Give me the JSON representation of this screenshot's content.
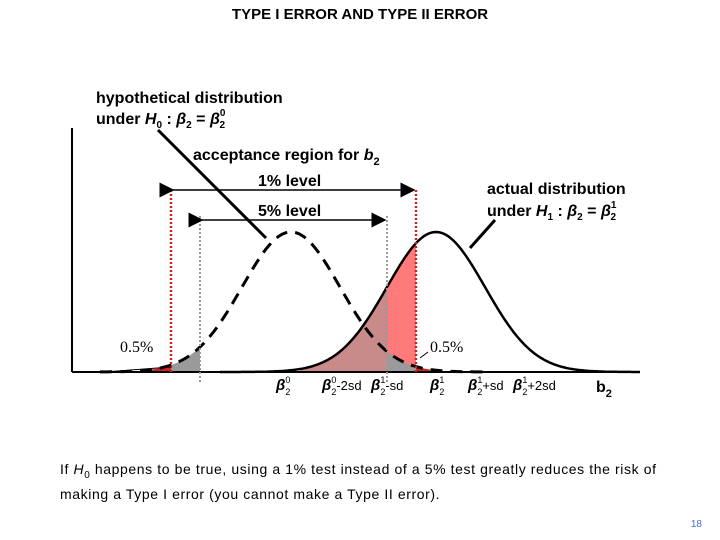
{
  "title": "TYPE I ERROR AND TYPE II ERROR",
  "h0_label": {
    "line1": "hypothetical distribution",
    "line2_prefix": "under ",
    "hypothesis_symbol": "H",
    "hypothesis_sub": "0",
    "colon": " : ",
    "beta": "β",
    "beta_sub": "2",
    "equals": " = ",
    "beta_sup": "0"
  },
  "h1_label": {
    "line1": "actual distribution",
    "line2_prefix": "under ",
    "hypothesis_symbol": "H",
    "hypothesis_sub": "1",
    "colon": " : ",
    "beta": "β",
    "beta_sub": "2",
    "equals": " = ",
    "beta_sup": "1"
  },
  "acceptance_region": {
    "text": "acceptance region for ",
    "var": "b",
    "var_sub": "2"
  },
  "levels": {
    "one_percent": "1% level",
    "five_percent": "5% level"
  },
  "tail_labels": {
    "left": "0.5%",
    "right": "0.5%"
  },
  "axis_ticks": [
    {
      "greek": "β",
      "sub": "2",
      "sup": "0",
      "suffix": ""
    },
    {
      "greek": "β",
      "sub": "2",
      "sup": "0",
      "suffix": "-2sd"
    },
    {
      "greek": "β",
      "sub": "2",
      "sup": "1",
      "suffix": "-sd"
    },
    {
      "greek": "β",
      "sub": "2",
      "sup": "1",
      "suffix": ""
    },
    {
      "greek": "β",
      "sub": "2",
      "sup": "1",
      "suffix": "+sd"
    },
    {
      "greek": "β",
      "sub": "2",
      "sup": "1",
      "suffix": "+2sd"
    }
  ],
  "axis_var": {
    "var": "b",
    "sub": "2"
  },
  "footnote": {
    "prefix": "If ",
    "h": "H",
    "h_sub": "0",
    "rest": " happens to be true, using a 1% test instead of a 5% test greatly reduces the risk of making a Type I error (you cannot make a Type II error)."
  },
  "page_number": "18",
  "colors": {
    "red_region": "#ff7b7b",
    "overlap_region": "#c98a8a",
    "grey_tail": "#9a9a9a",
    "red_boundary": "#cc2222",
    "grey_boundary": "#9a9a9a"
  }
}
